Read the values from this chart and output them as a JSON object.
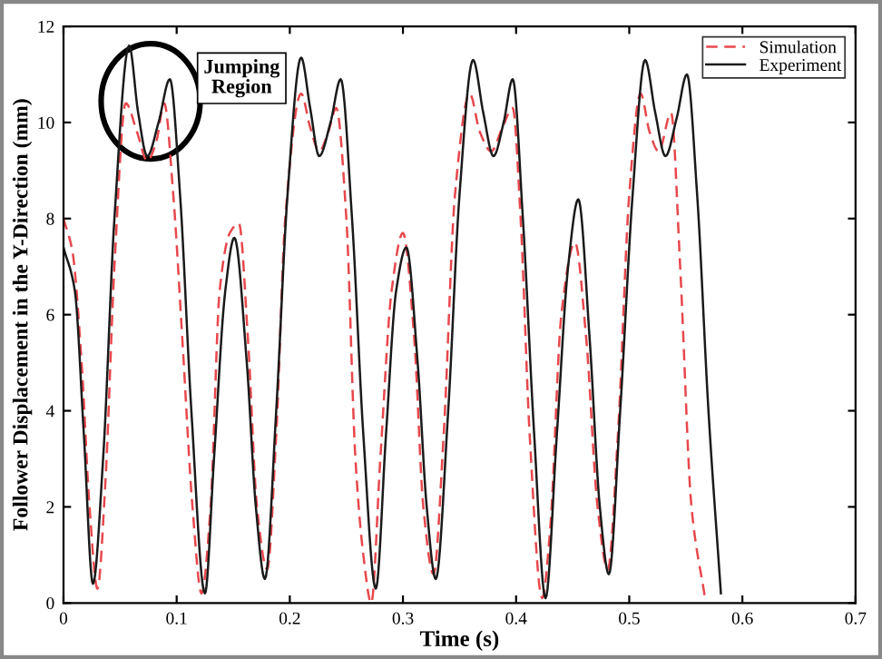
{
  "chart_data": {
    "type": "line",
    "xlabel": "Time (s)",
    "ylabel": "Follower Displacement in the Y-Direction (mm)",
    "xlim": [
      0,
      0.7
    ],
    "xticks": [
      0,
      0.1,
      0.2,
      0.3,
      0.4,
      0.5,
      0.6,
      0.7
    ],
    "ylim": [
      0,
      12
    ],
    "yticks": [
      0,
      2,
      4,
      6,
      8,
      10,
      12
    ],
    "grid": false,
    "legend": "top right",
    "annotations": [
      "Jumping\nRegion"
    ],
    "series": [
      {
        "name": "Simulation",
        "color": "#e8474c",
        "line_style": "dashed",
        "x": [
          0,
          0.008,
          0.016,
          0.023,
          0.03,
          0.037,
          0.045,
          0.055,
          0.065,
          0.074,
          0.082,
          0.089,
          0.097,
          0.105,
          0.114,
          0.122,
          0.13,
          0.138,
          0.147,
          0.155,
          0.163,
          0.171,
          0.18,
          0.188,
          0.196,
          0.21,
          0.218,
          0.226,
          0.234,
          0.241,
          0.25,
          0.258,
          0.265,
          0.272,
          0.28,
          0.29,
          0.3,
          0.31,
          0.318,
          0.327,
          0.336,
          0.346,
          0.359,
          0.368,
          0.378,
          0.388,
          0.397,
          0.404,
          0.412,
          0.423,
          0.43,
          0.44,
          0.452,
          0.462,
          0.472,
          0.481,
          0.49,
          0.5,
          0.51,
          0.518,
          0.526,
          0.537,
          0.545,
          0.555,
          0.567
        ],
        "values": [
          8.0,
          7.3,
          5.0,
          2.0,
          0.3,
          2.5,
          7.0,
          10.4,
          9.8,
          9.2,
          9.6,
          10.4,
          8.5,
          5.5,
          2.0,
          0.2,
          2.0,
          6.5,
          7.7,
          7.9,
          5.5,
          2.0,
          0.7,
          3.5,
          8.0,
          10.6,
          9.9,
          9.4,
          9.8,
          10.3,
          8.0,
          3.0,
          1.0,
          0.0,
          3.0,
          6.5,
          7.7,
          5.5,
          2.0,
          0.6,
          3.5,
          8.5,
          10.6,
          9.8,
          9.4,
          9.9,
          10.3,
          8.0,
          3.5,
          0.1,
          1.5,
          6.0,
          7.5,
          5.5,
          2.0,
          0.7,
          3.5,
          8.5,
          10.6,
          9.8,
          9.4,
          10.2,
          7.0,
          2.0,
          0.1
        ]
      },
      {
        "name": "Experiment",
        "color": "#1a1a1a",
        "line_style": "solid",
        "x": [
          0,
          0.01,
          0.018,
          0.026,
          0.035,
          0.045,
          0.058,
          0.066,
          0.074,
          0.084,
          0.094,
          0.103,
          0.113,
          0.125,
          0.133,
          0.143,
          0.151,
          0.162,
          0.17,
          0.178,
          0.188,
          0.198,
          0.21,
          0.218,
          0.226,
          0.236,
          0.245,
          0.255,
          0.265,
          0.276,
          0.285,
          0.294,
          0.303,
          0.313,
          0.321,
          0.329,
          0.34,
          0.35,
          0.362,
          0.371,
          0.38,
          0.389,
          0.397,
          0.406,
          0.416,
          0.426,
          0.436,
          0.446,
          0.455,
          0.465,
          0.474,
          0.482,
          0.492,
          0.503,
          0.514,
          0.523,
          0.532,
          0.542,
          0.551,
          0.56,
          0.57,
          0.581
        ],
        "values": [
          7.4,
          6.5,
          3.5,
          0.4,
          3.0,
          8.0,
          11.6,
          10.2,
          9.3,
          10.0,
          10.9,
          8.5,
          4.0,
          0.2,
          3.0,
          6.5,
          7.6,
          5.0,
          2.0,
          0.5,
          4.0,
          8.5,
          11.35,
          10.3,
          9.3,
          10.0,
          10.9,
          8.0,
          3.5,
          0.3,
          3.5,
          6.5,
          7.4,
          5.0,
          2.0,
          0.5,
          4.0,
          8.5,
          11.3,
          10.2,
          9.3,
          10.0,
          10.9,
          8.0,
          3.5,
          0.1,
          3.5,
          7.0,
          8.4,
          5.5,
          2.0,
          0.6,
          4.0,
          8.5,
          11.3,
          10.2,
          9.3,
          10.1,
          11.0,
          8.5,
          4.0,
          0.2
        ]
      }
    ]
  }
}
